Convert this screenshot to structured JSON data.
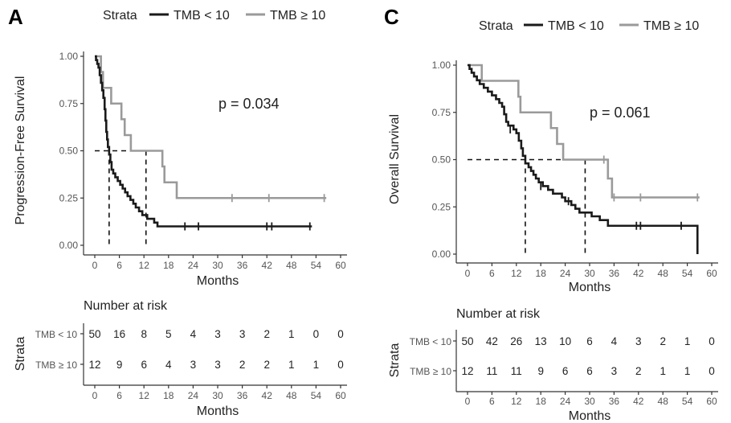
{
  "colors": {
    "tmb_low": "#1a1a1a",
    "tmb_high": "#9a9a9a",
    "median_line": "#111111"
  },
  "chart_data": [
    {
      "panel": "A",
      "type": "line",
      "subtype": "kaplan-meier",
      "ylabel": "Progression-Free Survival",
      "xlabel": "Months",
      "xlim": [
        0,
        60
      ],
      "ylim": [
        0,
        1
      ],
      "x_ticks": [
        0,
        6,
        12,
        18,
        24,
        30,
        36,
        42,
        48,
        54,
        60
      ],
      "y_ticks": [
        "0.00",
        "0.25",
        "0.50",
        "0.75",
        "1.00"
      ],
      "grid": false,
      "legend": {
        "title": "Strata",
        "position": "top",
        "entries": [
          "TMB < 10",
          "TMB ≥ 10"
        ]
      },
      "annotation": "p = 0.034",
      "medians": [
        3.5,
        12.5
      ],
      "series": [
        {
          "name": "TMB < 10",
          "color_key": "tmb_low",
          "steps": [
            [
              0,
              1.0
            ],
            [
              0.3,
              0.98
            ],
            [
              0.6,
              0.96
            ],
            [
              0.9,
              0.94
            ],
            [
              1.2,
              0.9
            ],
            [
              1.5,
              0.86
            ],
            [
              1.8,
              0.82
            ],
            [
              2.1,
              0.78
            ],
            [
              2.4,
              0.72
            ],
            [
              2.6,
              0.66
            ],
            [
              2.8,
              0.6
            ],
            [
              3.0,
              0.56
            ],
            [
              3.2,
              0.52
            ],
            [
              3.5,
              0.48
            ],
            [
              3.8,
              0.44
            ],
            [
              4.1,
              0.4
            ],
            [
              4.5,
              0.38
            ],
            [
              5.0,
              0.36
            ],
            [
              5.6,
              0.34
            ],
            [
              6.2,
              0.32
            ],
            [
              6.8,
              0.3
            ],
            [
              7.4,
              0.28
            ],
            [
              8.0,
              0.26
            ],
            [
              8.7,
              0.24
            ],
            [
              9.4,
              0.22
            ],
            [
              10.0,
              0.2
            ],
            [
              10.8,
              0.18
            ],
            [
              11.6,
              0.16
            ],
            [
              12.8,
              0.14
            ],
            [
              14.5,
              0.12
            ],
            [
              15.3,
              0.1
            ],
            [
              53,
              0.1
            ]
          ],
          "censors": [
            [
              22,
              0.1
            ],
            [
              25.3,
              0.1
            ],
            [
              42,
              0.1
            ],
            [
              43.2,
              0.1
            ],
            [
              52.5,
              0.1
            ]
          ]
        },
        {
          "name": "TMB ≥ 10",
          "color_key": "tmb_high",
          "steps": [
            [
              0,
              1.0
            ],
            [
              1.5,
              0.917
            ],
            [
              2.0,
              0.833
            ],
            [
              4.0,
              0.75
            ],
            [
              6.5,
              0.667
            ],
            [
              7.3,
              0.583
            ],
            [
              8.8,
              0.5
            ],
            [
              16.5,
              0.417
            ],
            [
              17.0,
              0.333
            ],
            [
              20.0,
              0.25
            ],
            [
              56.5,
              0.25
            ]
          ],
          "censors": [
            [
              33.5,
              0.25
            ],
            [
              42.5,
              0.25
            ],
            [
              56.0,
              0.25
            ]
          ]
        }
      ],
      "number_at_risk": {
        "title": "Number at risk",
        "strata_label": "Strata",
        "xlabel": "Months",
        "x_ticks": [
          0,
          6,
          12,
          18,
          24,
          30,
          36,
          42,
          48,
          54,
          60
        ],
        "rows": [
          {
            "label": "TMB < 10",
            "values": [
              50,
              16,
              8,
              5,
              4,
              3,
              3,
              2,
              1,
              0,
              0
            ]
          },
          {
            "label": "TMB ≥ 10",
            "values": [
              12,
              9,
              6,
              4,
              3,
              3,
              2,
              2,
              1,
              1,
              0
            ]
          }
        ]
      }
    },
    {
      "panel": "C",
      "type": "line",
      "subtype": "kaplan-meier",
      "ylabel": "Overall Survival",
      "xlabel": "Months",
      "xlim": [
        0,
        60
      ],
      "ylim": [
        0,
        1
      ],
      "x_ticks": [
        0,
        6,
        12,
        18,
        24,
        30,
        36,
        42,
        48,
        54,
        60
      ],
      "y_ticks": [
        "0.00",
        "0.25",
        "0.50",
        "0.75",
        "1.00"
      ],
      "grid": false,
      "legend": {
        "title": "Strata",
        "position": "top",
        "entries": [
          "TMB < 10",
          "TMB ≥ 10"
        ]
      },
      "annotation": "p = 0.061",
      "medians": [
        14.2,
        28.9
      ],
      "series": [
        {
          "name": "TMB < 10",
          "color_key": "tmb_low",
          "steps": [
            [
              0,
              1.0
            ],
            [
              0.5,
              0.98
            ],
            [
              1.0,
              0.96
            ],
            [
              1.6,
              0.94
            ],
            [
              2.3,
              0.92
            ],
            [
              3.0,
              0.9
            ],
            [
              4.0,
              0.88
            ],
            [
              5.0,
              0.86
            ],
            [
              6.0,
              0.84
            ],
            [
              7.0,
              0.82
            ],
            [
              7.8,
              0.8
            ],
            [
              8.5,
              0.78
            ],
            [
              9.0,
              0.74
            ],
            [
              9.5,
              0.7
            ],
            [
              10.0,
              0.68
            ],
            [
              11.3,
              0.66
            ],
            [
              12.0,
              0.64
            ],
            [
              12.6,
              0.6
            ],
            [
              13.2,
              0.56
            ],
            [
              13.6,
              0.52
            ],
            [
              14.2,
              0.48
            ],
            [
              15.0,
              0.46
            ],
            [
              15.6,
              0.44
            ],
            [
              16.2,
              0.42
            ],
            [
              16.8,
              0.4
            ],
            [
              17.5,
              0.38
            ],
            [
              18.5,
              0.36
            ],
            [
              19.8,
              0.34
            ],
            [
              21.0,
              0.32
            ],
            [
              23.2,
              0.3
            ],
            [
              24.0,
              0.28
            ],
            [
              25.5,
              0.26
            ],
            [
              26.5,
              0.24
            ],
            [
              27.5,
              0.22
            ],
            [
              30.5,
              0.2
            ],
            [
              32.5,
              0.18
            ],
            [
              34.5,
              0.15
            ],
            [
              56.5,
              0.15
            ],
            [
              56.5,
              0.0
            ]
          ],
          "censors": [
            [
              10.5,
              0.66
            ],
            [
              18.0,
              0.36
            ],
            [
              24.8,
              0.28
            ],
            [
              41.5,
              0.15
            ],
            [
              42.5,
              0.15
            ],
            [
              52.5,
              0.15
            ]
          ]
        },
        {
          "name": "TMB ≥ 10",
          "color_key": "tmb_high",
          "steps": [
            [
              0,
              1.0
            ],
            [
              3.5,
              0.917
            ],
            [
              12.5,
              0.833
            ],
            [
              13.0,
              0.75
            ],
            [
              20.5,
              0.667
            ],
            [
              22.0,
              0.583
            ],
            [
              23.5,
              0.5
            ],
            [
              34.5,
              0.4
            ],
            [
              35.5,
              0.3
            ],
            [
              57.0,
              0.3
            ]
          ],
          "censors": [
            [
              33.5,
              0.5
            ],
            [
              36.0,
              0.3
            ],
            [
              42.5,
              0.3
            ],
            [
              56.5,
              0.3
            ]
          ]
        }
      ],
      "number_at_risk": {
        "title": "Number at risk",
        "strata_label": "Strata",
        "xlabel": "Months",
        "x_ticks": [
          0,
          6,
          12,
          18,
          24,
          30,
          36,
          42,
          48,
          54,
          60
        ],
        "rows": [
          {
            "label": "TMB < 10",
            "values": [
              50,
              42,
              26,
              13,
              10,
              6,
              4,
              3,
              2,
              1,
              0
            ]
          },
          {
            "label": "TMB ≥ 10",
            "values": [
              12,
              11,
              11,
              9,
              6,
              6,
              3,
              2,
              1,
              1,
              0
            ]
          }
        ]
      }
    }
  ]
}
